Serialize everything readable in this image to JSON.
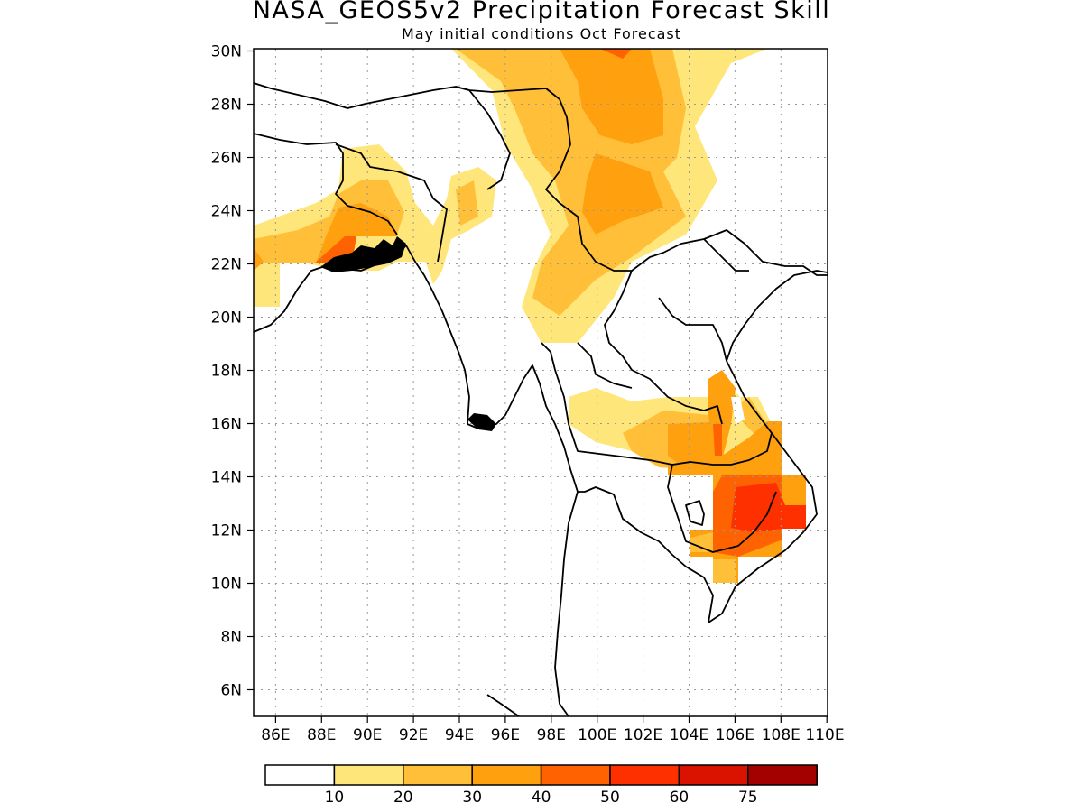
{
  "title": "NASA_GEOS5v2 Precipitation Forecast Skill",
  "subtitle": "May initial conditions  Oct Forecast",
  "map": {
    "lon_range": [
      85,
      110
    ],
    "lat_range": [
      5,
      30
    ],
    "x_ticks": [
      "86E",
      "88E",
      "90E",
      "92E",
      "94E",
      "96E",
      "98E",
      "100E",
      "102E",
      "104E",
      "106E",
      "108E",
      "110E"
    ],
    "y_ticks": [
      "6N",
      "8N",
      "10N",
      "12N",
      "14N",
      "16N",
      "18N",
      "20N",
      "22N",
      "24N",
      "26N",
      "28N",
      "30N"
    ],
    "grid": true,
    "grid_style": "dotted"
  },
  "colorbar": {
    "colors": [
      "#ffffff",
      "#ffe67a",
      "#ffbf38",
      "#ffa00e",
      "#ff6200",
      "#ff3000",
      "#da1300",
      "#a30000"
    ],
    "labels": [
      "10",
      "20",
      "30",
      "40",
      "50",
      "60",
      "75"
    ]
  }
}
